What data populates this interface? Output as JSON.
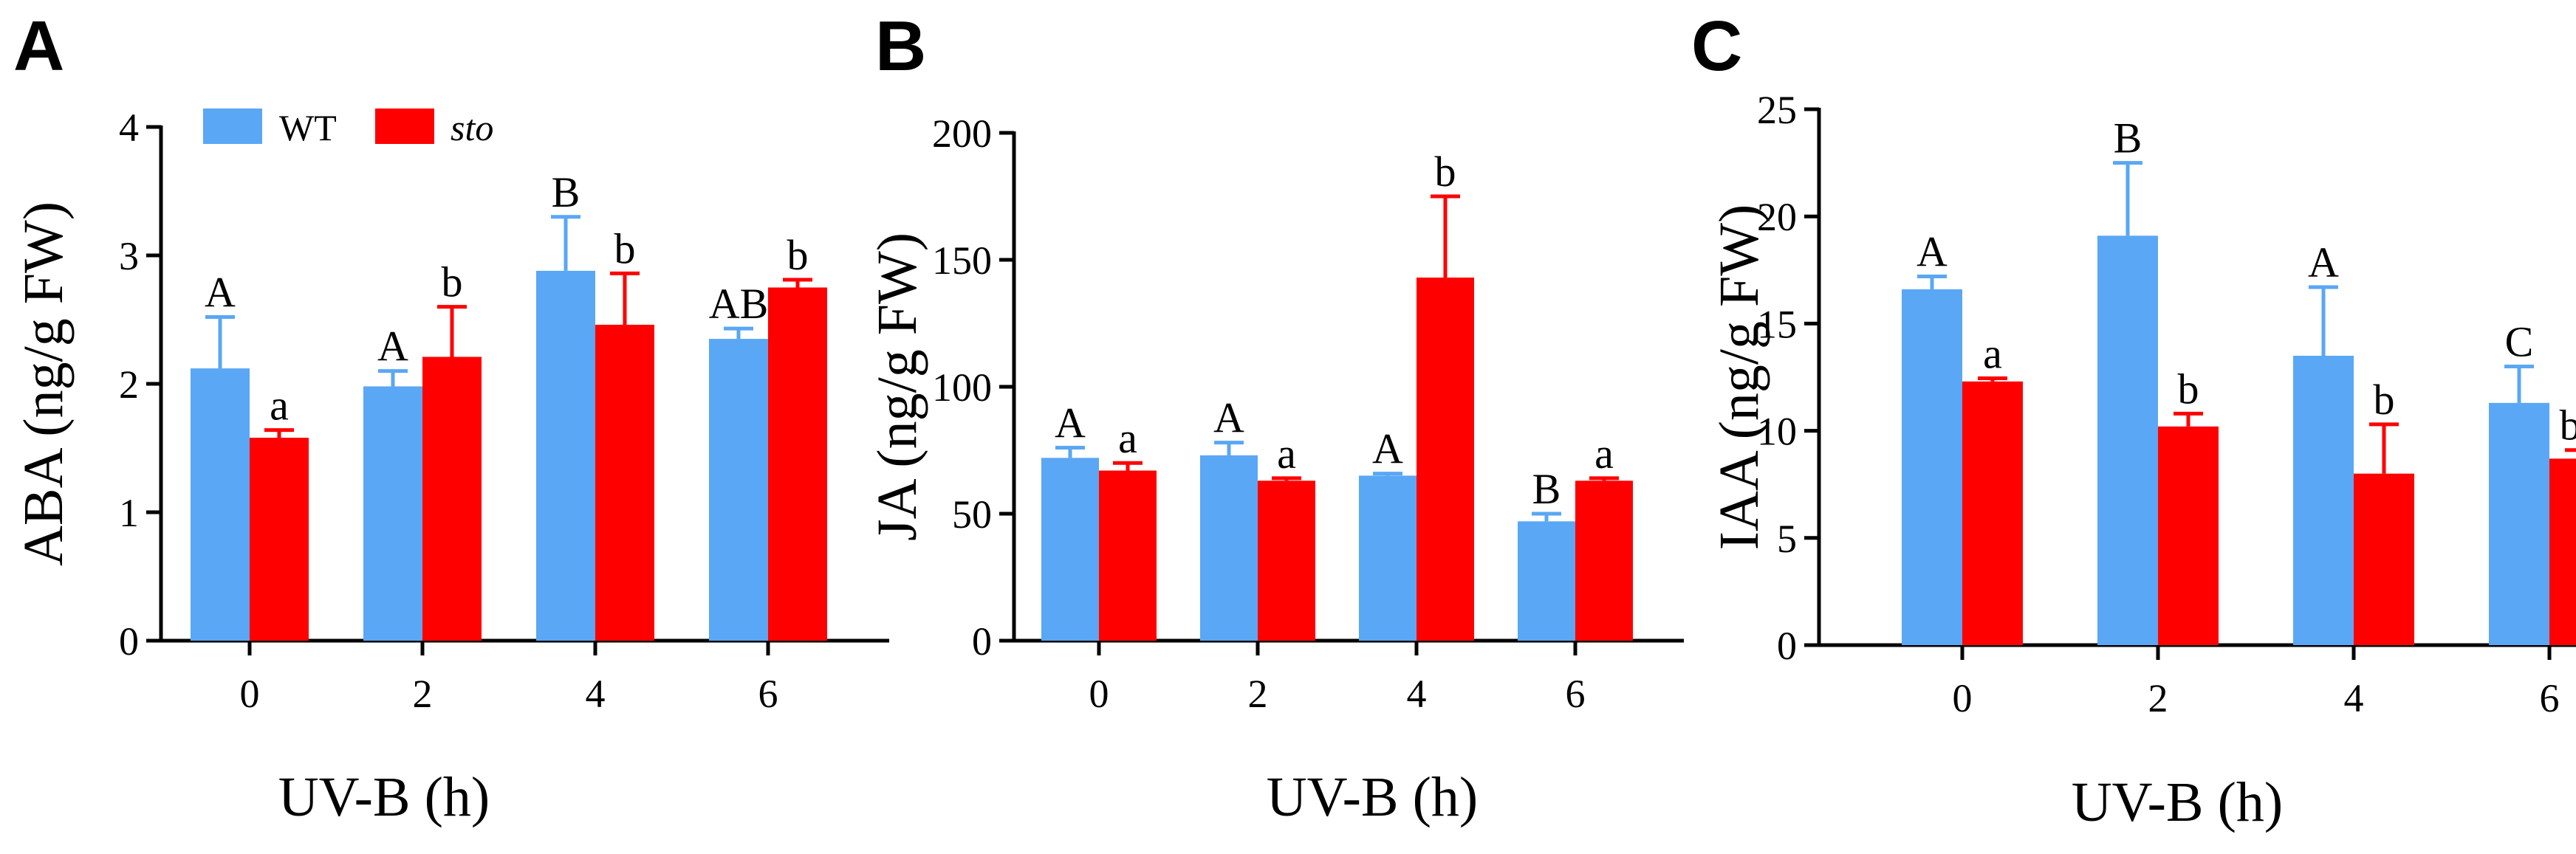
{
  "colors": {
    "wt": "#5aa7f5",
    "sto": "#ff0000",
    "axis": "#000000"
  },
  "legend": {
    "wt_label": "WT",
    "sto_label": "sto",
    "position": "top-left of panel A"
  },
  "chart_data": [
    {
      "type": "bar",
      "panel": "A",
      "title": "",
      "xlabel": "UV-B (h)",
      "ylabel": "ABA (ng/g FW)",
      "ylim": [
        0,
        4
      ],
      "yticks": [
        0,
        1,
        2,
        3,
        4
      ],
      "ytick_labels": [
        "0",
        "1",
        "2",
        "3",
        "4"
      ],
      "categories": [
        "0",
        "2",
        "4",
        "6"
      ],
      "series": [
        {
          "name": "WT",
          "color": "#5aa7f5",
          "values": [
            2.12,
            1.98,
            2.88,
            2.35
          ],
          "errors": [
            0.4,
            0.12,
            0.42,
            0.08
          ],
          "letters": [
            "A",
            "A",
            "B",
            "AB"
          ]
        },
        {
          "name": "sto",
          "color": "#ff0000",
          "values": [
            1.58,
            2.21,
            2.46,
            2.75
          ],
          "errors": [
            0.06,
            0.39,
            0.4,
            0.06
          ],
          "letters": [
            "a",
            "b",
            "b",
            "b"
          ]
        }
      ]
    },
    {
      "type": "bar",
      "panel": "B",
      "title": "",
      "xlabel": "UV-B (h)",
      "ylabel": "JA (ng/g FW)",
      "ylim": [
        0,
        200
      ],
      "yticks": [
        0,
        50,
        100,
        150,
        200
      ],
      "ytick_labels": [
        "0",
        "50",
        "100",
        "150",
        "200"
      ],
      "categories": [
        "0",
        "2",
        "4",
        "6"
      ],
      "series": [
        {
          "name": "WT",
          "color": "#5aa7f5",
          "values": [
            72,
            73,
            65,
            47
          ],
          "errors": [
            4,
            5,
            0.8,
            3
          ],
          "letters": [
            "A",
            "A",
            "A",
            "B"
          ]
        },
        {
          "name": "sto",
          "color": "#ff0000",
          "values": [
            67,
            63,
            143,
            63
          ],
          "errors": [
            3,
            1,
            32,
            1
          ],
          "letters": [
            "a",
            "a",
            "b",
            "a"
          ]
        }
      ]
    },
    {
      "type": "bar",
      "panel": "C",
      "title": "",
      "xlabel": "UV-B (h)",
      "ylabel": "IAA (ng/g FW)",
      "ylim": [
        0,
        25
      ],
      "yticks": [
        0,
        5,
        10,
        15,
        20,
        25
      ],
      "ytick_labels": [
        "0",
        "5",
        "10",
        "15",
        "20",
        "25"
      ],
      "categories": [
        "0",
        "2",
        "4",
        "6"
      ],
      "series": [
        {
          "name": "WT",
          "color": "#5aa7f5",
          "values": [
            16.6,
            19.1,
            13.5,
            11.3
          ],
          "errors": [
            0.6,
            3.4,
            3.2,
            1.7
          ],
          "letters": [
            "A",
            "B",
            "A",
            "C"
          ]
        },
        {
          "name": "sto",
          "color": "#ff0000",
          "values": [
            12.3,
            10.2,
            8.0,
            8.7
          ],
          "errors": [
            0.15,
            0.6,
            2.3,
            0.4
          ],
          "letters": [
            "a",
            "b",
            "b",
            "bc"
          ]
        }
      ]
    }
  ]
}
